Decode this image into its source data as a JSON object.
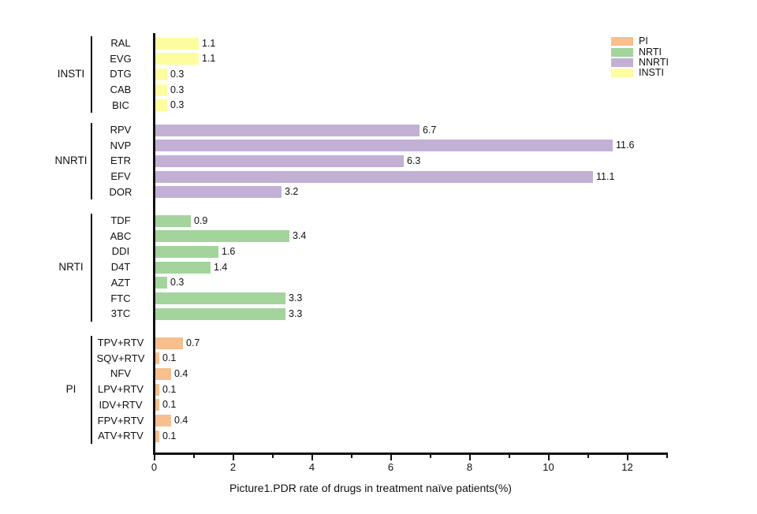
{
  "figure": {
    "title": "Picture1.PDR rate of drugs in treatment naïve patients(%)"
  },
  "legend": {
    "items": [
      {
        "label": "PI",
        "color": "#F8BE8E"
      },
      {
        "label": "NRTI",
        "color": "#A2D49C"
      },
      {
        "label": "NNRTI",
        "color": "#C2B0D5"
      },
      {
        "label": "INSTI",
        "color": "#FDFD9F"
      }
    ]
  },
  "chart_data": {
    "type": "bar",
    "orientation": "horizontal",
    "title": "Picture1.PDR rate of drugs in treatment naïve patients(%)",
    "xlabel": "",
    "ylabel": "",
    "xlim": [
      0,
      13
    ],
    "x_major_ticks": [
      0,
      2,
      4,
      6,
      8,
      10,
      12
    ],
    "x_major_tick_labels": [
      "0",
      "2",
      "4",
      "6",
      "8",
      "10",
      "12"
    ],
    "x_minor_ticks": [
      1,
      3,
      5,
      7,
      9,
      11,
      13
    ],
    "grid": "off",
    "legend_position": "top-right",
    "value_labels": "shown at bar ends, one decimal",
    "axis_color": "#111111",
    "groups": [
      {
        "name": "INSTI",
        "color": "#FDFD9F",
        "drugs": [
          "RAL",
          "EVG",
          "DTG",
          "CAB",
          "BIC"
        ],
        "values": [
          1.1,
          1.1,
          0.3,
          0.3,
          0.3
        ]
      },
      {
        "name": "NNRTI",
        "color": "#C2B0D5",
        "drugs": [
          "RPV",
          "NVP",
          "ETR",
          "EFV",
          "DOR"
        ],
        "values": [
          6.7,
          11.6,
          6.3,
          11.1,
          3.2
        ]
      },
      {
        "name": "NRTI",
        "color": "#A2D49C",
        "drugs": [
          "TDF",
          "ABC",
          "DDI",
          "D4T",
          "AZT",
          "FTC",
          "3TC"
        ],
        "values": [
          0.9,
          3.4,
          1.6,
          1.4,
          0.3,
          3.3,
          3.3
        ]
      },
      {
        "name": "PI",
        "color": "#F8BE8E",
        "drugs": [
          "TPV+RTV",
          "SQV+RTV",
          "NFV",
          "LPV+RTV",
          "IDV+RTV",
          "FPV+RTV",
          "ATV+RTV"
        ],
        "values": [
          0.7,
          0.1,
          0.4,
          0.1,
          0.1,
          0.4,
          0.1
        ]
      }
    ]
  }
}
